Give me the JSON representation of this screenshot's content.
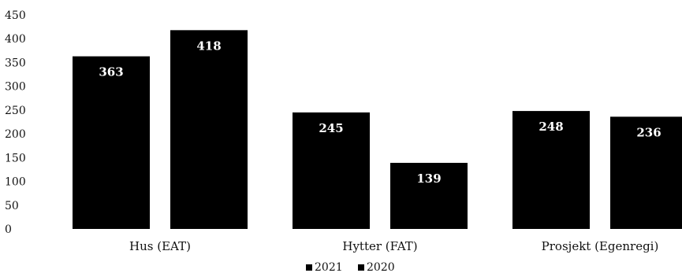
{
  "chart_data": {
    "type": "bar",
    "categories": [
      "Hus (EAT)",
      "Hytter (FAT)",
      "Prosjekt (Egenregi)"
    ],
    "series": [
      {
        "name": "2021",
        "values": [
          363,
          245,
          248
        ],
        "color": "#000000"
      },
      {
        "name": "2020",
        "values": [
          418,
          139,
          236
        ],
        "color": "#000000"
      }
    ],
    "yticks": [
      "0",
      "50",
      "100",
      "150",
      "200",
      "250",
      "300",
      "350",
      "400",
      "450"
    ],
    "ylim": [
      0,
      450
    ],
    "grid": false,
    "legend_position": "bottom",
    "title": "",
    "xlabel": "",
    "ylabel": ""
  }
}
